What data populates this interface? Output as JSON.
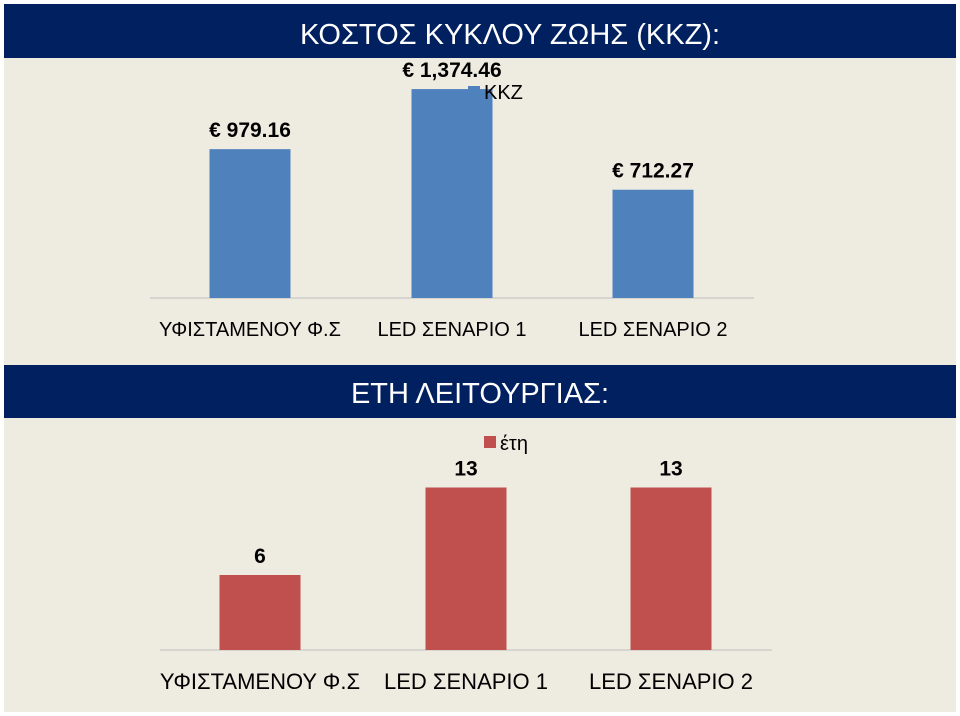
{
  "colors": {
    "background": "#eeebe1",
    "banner": "#002060",
    "cost_bar": "#4f81bd",
    "years_bar": "#c0504d",
    "axis": "#bfbfbf"
  },
  "chart_data": [
    {
      "type": "bar",
      "title": "ΚΟΣΤΟΣ ΚΥΚΛΟΥ ΖΩΗΣ (ΚΚΖ):",
      "categories": [
        "ΥΦΙΣΤΑΜΕΝΟΥ Φ.Σ",
        "LED ΣΕΝΑΡΙΟ 1",
        "LED ΣΕΝΑΡΙΟ 2"
      ],
      "series": [
        {
          "name": "ΚΚΖ",
          "values": [
            979.16,
            1374.46,
            712.27
          ],
          "labels": [
            "€ 979.16",
            "€ 1,374.46",
            "€ 712.27"
          ]
        }
      ],
      "ylim": [
        0,
        1500
      ],
      "legend": "top-center",
      "grid": false
    },
    {
      "type": "bar",
      "title": "ΕΤΗ ΛΕΙΤΟΥΡΓΙΑΣ:",
      "categories": [
        "ΥΦΙΣΤΑΜΕΝΟΥ Φ.Σ",
        "LED ΣΕΝΑΡΙΟ 1",
        "LED ΣΕΝΑΡΙΟ 2"
      ],
      "series": [
        {
          "name": "έτη",
          "values": [
            6,
            13,
            13
          ],
          "labels": [
            "6",
            "13",
            "13"
          ]
        }
      ],
      "ylim": [
        0,
        16
      ],
      "legend": "top-center",
      "grid": false
    }
  ]
}
